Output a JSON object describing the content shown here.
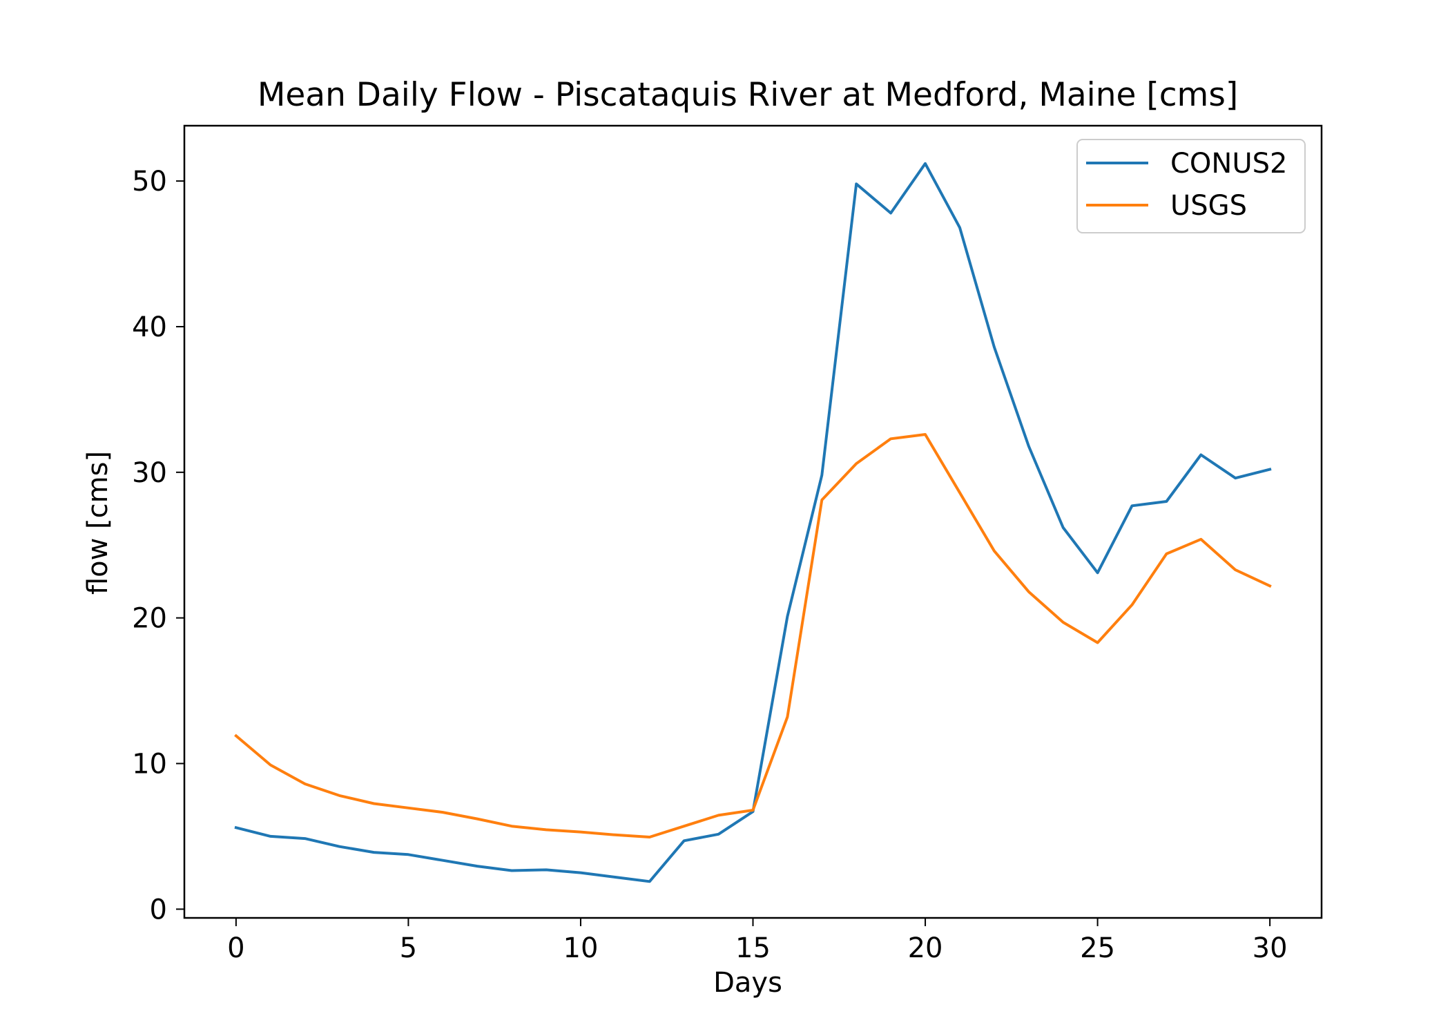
{
  "chart_data": {
    "type": "line",
    "title": "Mean Daily Flow - Piscataquis River at Medford, Maine [cms]",
    "xlabel": "Days",
    "ylabel": "flow [cms]",
    "xlim": [
      -1.5,
      31.5
    ],
    "ylim": [
      -0.6,
      53.8
    ],
    "xticks": [
      0,
      5,
      10,
      15,
      20,
      25,
      30
    ],
    "yticks": [
      0,
      10,
      20,
      30,
      40,
      50
    ],
    "grid": false,
    "legend_position": "top-right",
    "x": [
      0,
      1,
      2,
      3,
      4,
      5,
      6,
      7,
      8,
      9,
      10,
      11,
      12,
      13,
      14,
      15,
      16,
      17,
      18,
      19,
      20,
      21,
      22,
      23,
      24,
      25,
      26,
      27,
      28,
      29,
      30
    ],
    "series": [
      {
        "name": "CONUS2",
        "color": "#1f77b4",
        "values": [
          5.6,
          5.0,
          4.85,
          4.3,
          3.9,
          3.75,
          3.35,
          2.95,
          2.65,
          2.7,
          2.5,
          2.2,
          1.9,
          4.7,
          5.15,
          6.7,
          20.1,
          29.8,
          49.8,
          47.8,
          51.2,
          46.8,
          38.6,
          31.8,
          26.2,
          23.1,
          27.7,
          28.0,
          31.2,
          29.6,
          30.2
        ]
      },
      {
        "name": "USGS",
        "color": "#ff7f0e",
        "values": [
          11.9,
          9.9,
          8.6,
          7.8,
          7.25,
          6.95,
          6.65,
          6.2,
          5.7,
          5.45,
          5.3,
          5.1,
          4.95,
          5.7,
          6.45,
          6.8,
          13.2,
          28.1,
          30.6,
          32.3,
          32.6,
          28.6,
          24.6,
          21.8,
          19.7,
          18.3,
          20.9,
          24.4,
          25.4,
          23.3,
          22.2
        ]
      }
    ]
  }
}
